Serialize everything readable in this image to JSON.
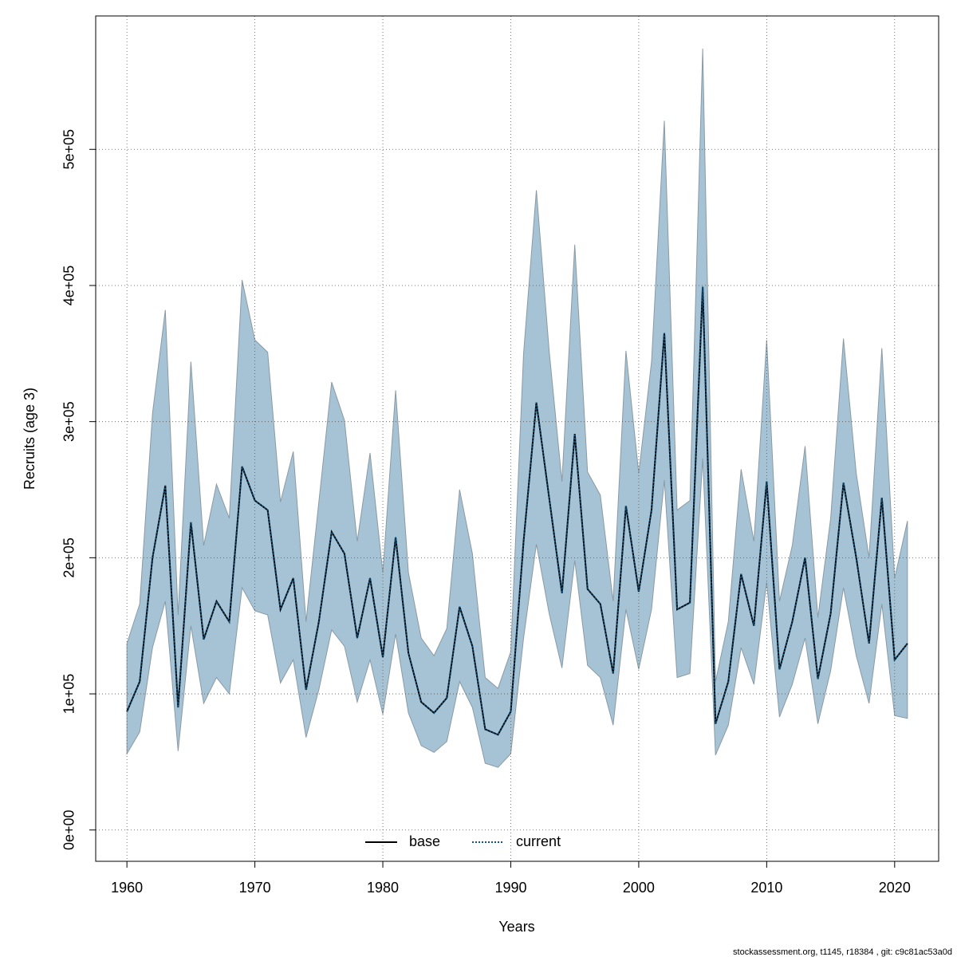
{
  "chart_data": {
    "type": "line",
    "x_label": "Years",
    "y_label": "Recruits (age 3)",
    "footer": "stockassessment.org, t1145, r18384 , git: c9c81ac53a0d",
    "x": [
      1960,
      1961,
      1962,
      1963,
      1964,
      1965,
      1966,
      1967,
      1968,
      1969,
      1970,
      1971,
      1972,
      1973,
      1974,
      1975,
      1976,
      1977,
      1978,
      1979,
      1980,
      1981,
      1982,
      1983,
      1984,
      1985,
      1986,
      1987,
      1988,
      1989,
      1990,
      1991,
      1992,
      1993,
      1994,
      1995,
      1996,
      1997,
      1998,
      1999,
      2000,
      2001,
      2002,
      2003,
      2004,
      2005,
      2006,
      2007,
      2008,
      2009,
      2010,
      2011,
      2012,
      2013,
      2014,
      2015,
      2016,
      2017,
      2018,
      2019,
      2020,
      2021
    ],
    "series": [
      {
        "name": "base",
        "color": "#000000",
        "line_style": "solid",
        "values": [
          87000,
          109000,
          200000,
          253000,
          90000,
          226000,
          140000,
          168000,
          153000,
          267000,
          242000,
          235000,
          162000,
          185000,
          103000,
          153000,
          219000,
          203000,
          141000,
          185000,
          127000,
          215000,
          130000,
          94000,
          86000,
          97000,
          164000,
          135000,
          74000,
          70000,
          87000,
          212000,
          314000,
          244000,
          174000,
          291000,
          177000,
          166000,
          115000,
          238000,
          175000,
          235000,
          365000,
          162000,
          167000,
          399000,
          78000,
          109000,
          188000,
          150000,
          256000,
          118000,
          153000,
          200000,
          111000,
          159000,
          255000,
          200000,
          137000,
          244000,
          125000,
          137000
        ]
      },
      {
        "name": "current",
        "color": "#0b4f7a",
        "line_style": "dotted",
        "values": [
          87000,
          109000,
          200000,
          253000,
          90000,
          226000,
          140000,
          168000,
          153000,
          267000,
          242000,
          235000,
          162000,
          185000,
          103000,
          153000,
          219000,
          203000,
          141000,
          185000,
          127000,
          215000,
          130000,
          94000,
          86000,
          97000,
          164000,
          135000,
          74000,
          70000,
          87000,
          212000,
          314000,
          244000,
          174000,
          291000,
          177000,
          166000,
          115000,
          238000,
          175000,
          235000,
          365000,
          162000,
          167000,
          399000,
          78000,
          109000,
          188000,
          150000,
          256000,
          118000,
          153000,
          200000,
          111000,
          159000,
          255000,
          200000,
          137000,
          244000,
          125000,
          137000
        ]
      }
    ],
    "band": {
      "color": "#a5c3d4",
      "border": "#8a9aa5",
      "upper": [
        137000,
        166000,
        306000,
        382000,
        158000,
        344000,
        209000,
        254000,
        229000,
        404000,
        360000,
        351000,
        241000,
        278000,
        153000,
        241000,
        329000,
        301000,
        212000,
        277000,
        189000,
        323000,
        189000,
        141000,
        128000,
        148000,
        250000,
        203000,
        112000,
        104000,
        131000,
        350000,
        470000,
        352000,
        256000,
        430000,
        263000,
        246000,
        168000,
        352000,
        262000,
        344000,
        521000,
        235000,
        242000,
        574000,
        109000,
        153000,
        265000,
        212000,
        360000,
        168000,
        209000,
        282000,
        156000,
        229000,
        361000,
        262000,
        200000,
        354000,
        185000,
        227000
      ],
      "lower": [
        56000,
        72000,
        134000,
        168000,
        58000,
        150000,
        93000,
        112000,
        100000,
        178000,
        161000,
        158000,
        108000,
        125000,
        68000,
        103000,
        147000,
        135000,
        94000,
        125000,
        85000,
        144000,
        86000,
        62000,
        57000,
        65000,
        109000,
        90000,
        49000,
        46000,
        56000,
        141000,
        210000,
        159000,
        119000,
        198000,
        121000,
        112000,
        77000,
        162000,
        118000,
        162000,
        257000,
        112000,
        115000,
        273000,
        55000,
        77000,
        134000,
        107000,
        182000,
        83000,
        107000,
        141000,
        78000,
        117000,
        178000,
        128000,
        93000,
        166000,
        84000,
        82000
      ]
    },
    "xlim": [
      1957.56,
      2023.44
    ],
    "ylim": [
      -23000,
      598000
    ],
    "xticks": [
      1960,
      1970,
      1980,
      1990,
      2000,
      2010,
      2020
    ],
    "yticks": [
      {
        "value": 0,
        "label": "0e+00"
      },
      {
        "value": 100000,
        "label": "1e+05"
      },
      {
        "value": 200000,
        "label": "2e+05"
      },
      {
        "value": 300000,
        "label": "3e+05"
      },
      {
        "value": 400000,
        "label": "4e+05"
      },
      {
        "value": 500000,
        "label": "5e+05"
      }
    ],
    "grid": true,
    "legend_position": "bottom"
  }
}
